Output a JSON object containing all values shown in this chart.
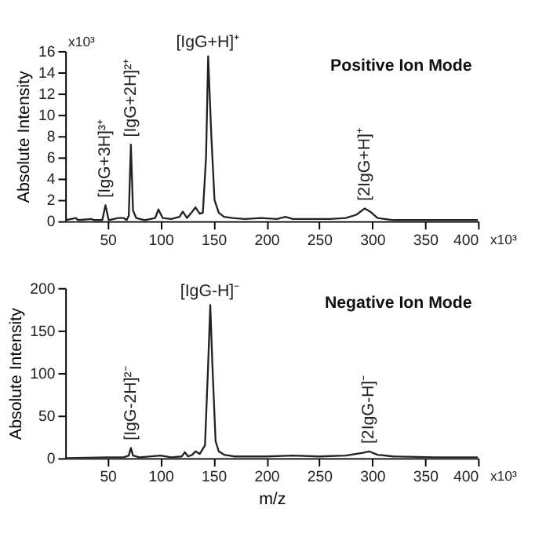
{
  "chart_data": [
    {
      "type": "line",
      "title": "Positive Ion Mode",
      "ylabel": "Absolute Intensity",
      "color": "#222222",
      "grid": false,
      "xlim": [
        10,
        400
      ],
      "xticks": [
        50,
        100,
        150,
        200,
        250,
        300,
        350,
        400
      ],
      "ylim": [
        0,
        16
      ],
      "yticks": [
        0,
        2,
        4,
        6,
        8,
        10,
        12,
        14,
        16
      ],
      "x": [
        10,
        20,
        22,
        35,
        37,
        45,
        48,
        51,
        60,
        65,
        68,
        70,
        72,
        74,
        77,
        85,
        95,
        98,
        102,
        110,
        118,
        121,
        125,
        130,
        133,
        137,
        140,
        143,
        145,
        148,
        151,
        155,
        160,
        168,
        180,
        195,
        210,
        218,
        225,
        245,
        260,
        275,
        285,
        293,
        298,
        305,
        320,
        350,
        400
      ],
      "values": [
        0.1,
        0.3,
        0.1,
        0.2,
        0.1,
        0.1,
        1.5,
        0.1,
        0.3,
        0.3,
        0.1,
        0.5,
        7.2,
        1.0,
        0.3,
        0.1,
        0.3,
        1.1,
        0.3,
        0.2,
        0.4,
        0.9,
        0.3,
        0.9,
        1.3,
        0.7,
        0.8,
        6,
        15.5,
        8,
        2,
        0.8,
        0.4,
        0.3,
        0.2,
        0.3,
        0.2,
        0.4,
        0.2,
        0.2,
        0.2,
        0.3,
        0.6,
        1.2,
        0.9,
        0.3,
        0.1,
        0.1,
        0.1
      ],
      "annotations": [
        "x10³",
        "x10³",
        {
          "text": "[IgG+H]⁺",
          "x": 145,
          "y": 15.5
        },
        {
          "text": "[IgG+3H]³⁺",
          "x": 48,
          "y": 1.5
        },
        {
          "text": "[IgG+2H]²⁺",
          "x": 72,
          "y": 7.2
        },
        {
          "text": "[2IgG+H]⁺",
          "x": 293,
          "y": 1.2
        }
      ]
    },
    {
      "type": "line",
      "title": "Negative Ion Mode",
      "ylabel": "Absolute Intensity",
      "xlabel": "m/z",
      "color": "#222222",
      "grid": false,
      "xlim": [
        10,
        400
      ],
      "xticks": [
        50,
        100,
        150,
        200,
        250,
        300,
        350,
        400
      ],
      "ylim": [
        0,
        200
      ],
      "yticks": [
        0,
        50,
        100,
        150,
        200
      ],
      "x": [
        10,
        50,
        65,
        70,
        72,
        74,
        80,
        100,
        110,
        120,
        123,
        126,
        130,
        133,
        137,
        142,
        145,
        147,
        149,
        152,
        155,
        160,
        170,
        200,
        225,
        250,
        275,
        290,
        297,
        305,
        320,
        360,
        400
      ],
      "values": [
        0,
        1,
        1,
        3,
        12,
        3,
        1,
        3,
        1,
        2,
        7,
        2,
        4,
        8,
        5,
        15,
        110,
        180,
        110,
        20,
        8,
        4,
        2,
        2,
        3,
        2,
        3,
        6,
        8,
        4,
        2,
        1,
        1
      ],
      "annotations": [
        "x10³",
        {
          "text": "[IgG-H]⁻",
          "x": 147,
          "y": 180
        },
        {
          "text": "[IgG-2H]²⁻",
          "x": 72,
          "y": 12
        },
        {
          "text": "[2IgG-H]⁻",
          "x": 297,
          "y": 8
        }
      ]
    }
  ]
}
